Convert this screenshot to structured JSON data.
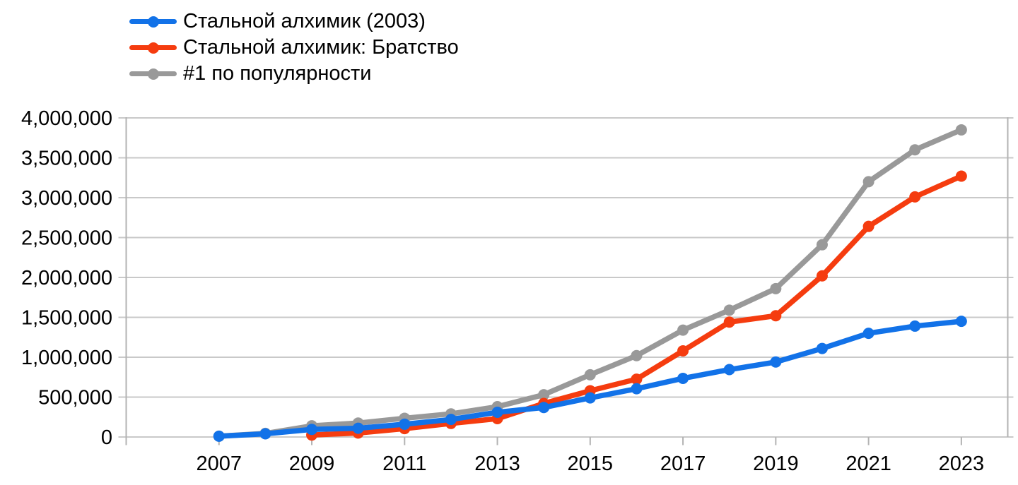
{
  "chart_data": {
    "type": "line",
    "x": [
      2007,
      2008,
      2009,
      2010,
      2011,
      2012,
      2013,
      2014,
      2015,
      2016,
      2017,
      2018,
      2019,
      2020,
      2021,
      2022,
      2023
    ],
    "series": [
      {
        "name": "Стальной алхимик (2003)",
        "color": "#1272e8",
        "values": [
          10000,
          40000,
          95000,
          110000,
          160000,
          220000,
          310000,
          370000,
          490000,
          605000,
          735000,
          845000,
          940000,
          1110000,
          1300000,
          1390000,
          1450000
        ]
      },
      {
        "name": "Стальной алхимик: Братство",
        "color": "#f53c0f",
        "values": [
          null,
          null,
          25000,
          50000,
          105000,
          170000,
          230000,
          420000,
          580000,
          725000,
          1080000,
          1440000,
          1520000,
          2020000,
          2640000,
          3010000,
          3270000
        ]
      },
      {
        "name": "#1 по популярности",
        "color": "#999999",
        "values": [
          10000,
          45000,
          140000,
          175000,
          235000,
          290000,
          380000,
          530000,
          780000,
          1020000,
          1340000,
          1590000,
          1860000,
          2410000,
          3200000,
          3600000,
          3850000
        ]
      }
    ],
    "title": "",
    "xlabel": "",
    "ylabel": "",
    "ylim": [
      0,
      4000000
    ],
    "ytick_step": 500000,
    "ytick_labels": [
      "0",
      "500,000",
      "1,000,000",
      "1,500,000",
      "2,000,000",
      "2,500,000",
      "3,000,000",
      "3,500,000",
      "4,000,000"
    ],
    "xtick_labels": [
      "2007",
      "2009",
      "2011",
      "2013",
      "2015",
      "2017",
      "2019",
      "2021",
      "2023"
    ],
    "xlim": [
      2005,
      2024
    ],
    "grid": true,
    "legend_position": "top-left"
  },
  "styles": {
    "grid_color": "#c9c9c9",
    "axis_color": "#b3b3b3",
    "text_color": "#000000",
    "background": "#ffffff"
  }
}
